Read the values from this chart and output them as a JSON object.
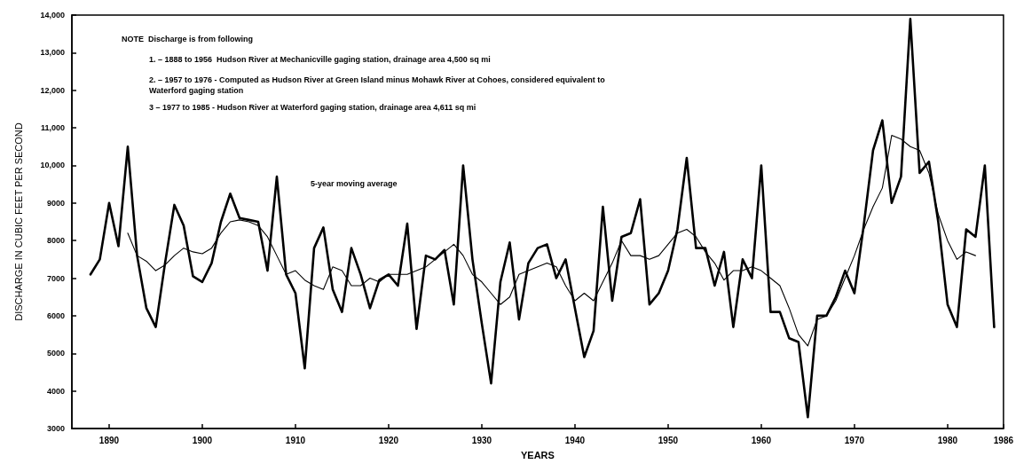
{
  "chart_data": {
    "type": "line",
    "xlabel": "YEARS",
    "ylabel": "DISCHARGE IN CUBIC FEET PER SECOND",
    "x": [
      1888,
      1889,
      1890,
      1891,
      1892,
      1893,
      1894,
      1895,
      1896,
      1897,
      1898,
      1899,
      1900,
      1901,
      1902,
      1903,
      1904,
      1905,
      1906,
      1907,
      1908,
      1909,
      1910,
      1911,
      1912,
      1913,
      1914,
      1915,
      1916,
      1917,
      1918,
      1919,
      1920,
      1921,
      1922,
      1923,
      1924,
      1925,
      1926,
      1927,
      1928,
      1929,
      1930,
      1931,
      1932,
      1933,
      1934,
      1935,
      1936,
      1937,
      1938,
      1939,
      1940,
      1941,
      1942,
      1943,
      1944,
      1945,
      1946,
      1947,
      1948,
      1949,
      1950,
      1951,
      1952,
      1953,
      1954,
      1955,
      1956,
      1957,
      1958,
      1959,
      1960,
      1961,
      1962,
      1963,
      1964,
      1965,
      1966,
      1967,
      1968,
      1969,
      1970,
      1971,
      1972,
      1973,
      1974,
      1975,
      1976,
      1977,
      1978,
      1979,
      1980,
      1981,
      1982,
      1983,
      1984,
      1985
    ],
    "series": [
      {
        "color": "#000000",
        "values": [
          7100,
          7500,
          9000,
          7850,
          10500,
          7600,
          6200,
          5700,
          7400,
          8950,
          8400,
          7050,
          6900,
          7400,
          8500,
          9250,
          8600,
          8550,
          8500,
          7200,
          9700,
          7100,
          6600,
          4600,
          7800,
          8350,
          6700,
          6100,
          7800,
          7100,
          6200,
          6950,
          7100,
          6800,
          8450,
          5650,
          7600,
          7500,
          7750,
          6300,
          10000,
          7500,
          5800,
          4200,
          6900,
          7950,
          5900,
          7400,
          7800,
          7900,
          7000,
          7500,
          6200,
          4900,
          5600,
          8900,
          6400,
          8100,
          8200,
          9100,
          6300,
          6600,
          7200,
          8300,
          10200,
          7800,
          7800,
          6800,
          7700,
          5700,
          7500,
          7000,
          10000,
          6100,
          6100,
          5400,
          5300,
          3300,
          6000,
          6000,
          6500,
          7200,
          6600,
          8400,
          10400,
          11200,
          9000,
          9700,
          13900,
          9800,
          10100,
          8500,
          6300,
          5700,
          8300,
          8100,
          10000,
          5700
        ]
      },
      {
        "name": "5-year moving average",
        "color": "#000000",
        "x": [
          1892,
          1893,
          1894,
          1895,
          1896,
          1897,
          1898,
          1899,
          1900,
          1901,
          1902,
          1903,
          1904,
          1905,
          1906,
          1907,
          1908,
          1909,
          1910,
          1911,
          1912,
          1913,
          1914,
          1915,
          1916,
          1917,
          1918,
          1919,
          1920,
          1921,
          1922,
          1923,
          1924,
          1925,
          1926,
          1927,
          1928,
          1929,
          1930,
          1931,
          1932,
          1933,
          1934,
          1935,
          1936,
          1937,
          1938,
          1939,
          1940,
          1941,
          1942,
          1943,
          1944,
          1945,
          1946,
          1947,
          1948,
          1949,
          1950,
          1951,
          1952,
          1953,
          1954,
          1955,
          1956,
          1957,
          1958,
          1959,
          1960,
          1961,
          1962,
          1963,
          1964,
          1965,
          1966,
          1967,
          1968,
          1969,
          1970,
          1971,
          1972,
          1973,
          1974,
          1975,
          1976,
          1977,
          1978,
          1979,
          1980,
          1981,
          1982,
          1983
        ],
        "values": [
          8200,
          7600,
          7450,
          7200,
          7350,
          7600,
          7800,
          7700,
          7650,
          7800,
          8200,
          8500,
          8550,
          8500,
          8400,
          8100,
          7600,
          7100,
          7200,
          6950,
          6800,
          6700,
          7300,
          7200,
          6800,
          6800,
          7000,
          6900,
          7100,
          7100,
          7100,
          7200,
          7300,
          7500,
          7700,
          7900,
          7600,
          7100,
          6900,
          6600,
          6300,
          6500,
          7100,
          7200,
          7300,
          7400,
          7300,
          6800,
          6400,
          6600,
          6400,
          6900,
          7400,
          8000,
          7600,
          7600,
          7500,
          7600,
          7900,
          8200,
          8300,
          8100,
          7700,
          7400,
          6950,
          7200,
          7200,
          7300,
          7200,
          7000,
          6800,
          6200,
          5500,
          5200,
          5900,
          6000,
          6400,
          7000,
          7600,
          8300,
          8900,
          9400,
          10800,
          10700,
          10500,
          10400,
          9800,
          8700,
          8000,
          7500,
          7700,
          7600
        ]
      }
    ],
    "xlim": [
      1886,
      1986
    ],
    "xticks": [
      1890,
      1900,
      1910,
      1920,
      1930,
      1940,
      1950,
      1960,
      1970,
      1980,
      1986
    ],
    "ylim": [
      3000,
      14000
    ],
    "yticks": [
      3000,
      4000,
      5000,
      6000,
      7000,
      8000,
      9000,
      {
        "value": 10000,
        "label": "10,000"
      },
      {
        "value": 11000,
        "label": "11,000"
      },
      {
        "value": 12000,
        "label": "12,000"
      },
      {
        "value": 13000,
        "label": "13,000"
      },
      {
        "value": 14000,
        "label": "14,000"
      }
    ],
    "grid": false,
    "marker": "none",
    "line_style": "solid",
    "annotations": [
      "NOTE  Discharge is from following",
      "1. – 1888 to 1956  Hudson River at Mechanicville gaging station, drainage area 4,500 sq mi",
      "2. – 1957 to 1976 - Computed as Hudson River at Green Island minus Mohawk River at Cohoes, considered equivalent to Waterford gaging station",
      "3 – 1977 to 1985 - Hudson River at Waterford gaging station, drainage area 4,611 sq mi"
    ]
  }
}
